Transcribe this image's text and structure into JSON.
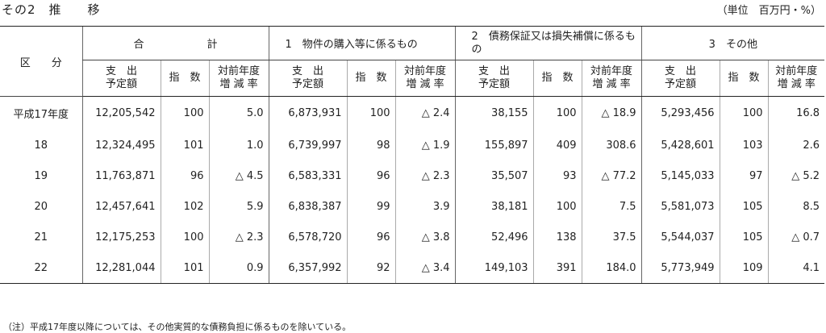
{
  "title": "その2　推　　移",
  "unit": "（単位　百万円・%）",
  "header": {
    "kubun": "区　　分",
    "groups": [
      "合　　　　　　計",
      "1　物件の購入等に係るもの",
      "2　債務保証又は損失補償に係るもの",
      "3　その他"
    ],
    "sub": {
      "amount_line1": "支　出",
      "amount_line2": "予定額",
      "index": "指　数",
      "rate_line1": "対前年度",
      "rate_line2": "増 減 率"
    }
  },
  "rows": [
    {
      "year": "平成17年度",
      "c": [
        "12,205,542",
        "100",
        "5.0",
        "6,873,931",
        "100",
        "△ 2.4",
        "38,155",
        "100",
        "△ 18.9",
        "5,293,456",
        "100",
        "16.8"
      ]
    },
    {
      "year": "18",
      "c": [
        "12,324,495",
        "101",
        "1.0",
        "6,739,997",
        "98",
        "△ 1.9",
        "155,897",
        "409",
        "308.6",
        "5,428,601",
        "103",
        "2.6"
      ]
    },
    {
      "year": "19",
      "c": [
        "11,763,871",
        "96",
        "△ 4.5",
        "6,583,331",
        "96",
        "△ 2.3",
        "35,507",
        "93",
        "△ 77.2",
        "5,145,033",
        "97",
        "△ 5.2"
      ]
    },
    {
      "year": "20",
      "c": [
        "12,457,641",
        "102",
        "5.9",
        "6,838,387",
        "99",
        "3.9",
        "38,181",
        "100",
        "7.5",
        "5,581,073",
        "105",
        "8.5"
      ]
    },
    {
      "year": "21",
      "c": [
        "12,175,253",
        "100",
        "△ 2.3",
        "6,578,720",
        "96",
        "△ 3.8",
        "52,496",
        "138",
        "37.5",
        "5,544,037",
        "105",
        "△ 0.7"
      ]
    },
    {
      "year": "22",
      "c": [
        "12,281,044",
        "101",
        "0.9",
        "6,357,992",
        "92",
        "△ 3.4",
        "149,103",
        "391",
        "184.0",
        "5,773,949",
        "109",
        "4.1"
      ]
    }
  ],
  "note": "（注）平成17年度以降については、その他実質的な債務負担に係るものを除いている。"
}
